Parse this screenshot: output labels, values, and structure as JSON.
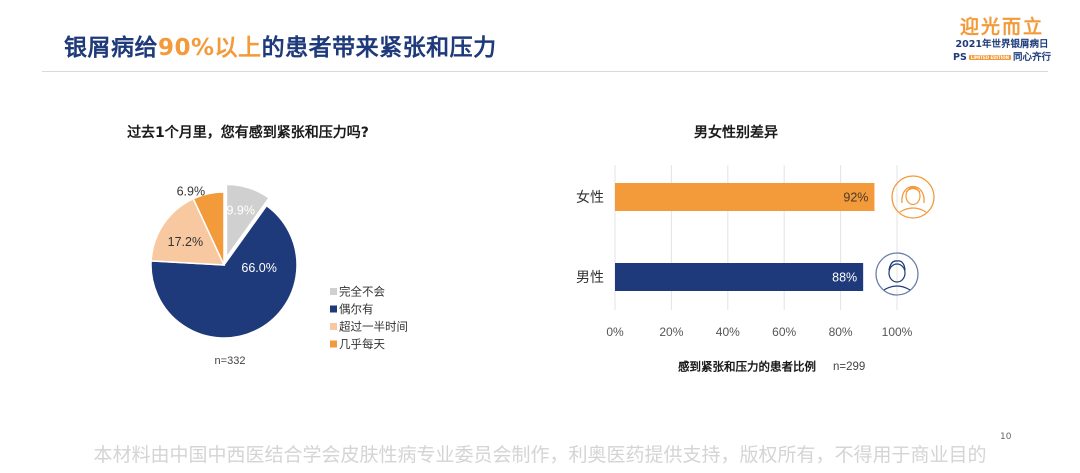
{
  "header": {
    "title_part1": "银屑病给",
    "title_highlight": "90%以上",
    "title_part2": "的患者带来紧张和压力",
    "accent_color": "#f39a3b",
    "primary_color": "#1f3a7a"
  },
  "logo": {
    "name": "迎光而立",
    "line2": "2021年世界银屑病日",
    "ps": "PS",
    "badge": "LIMITED EDITION",
    "line3_tail": "同心齐行"
  },
  "chart_data": [
    {
      "type": "pie",
      "title": "过去1个月里，您有感到紧张和压力吗?",
      "slices": [
        {
          "name": "完全不会",
          "value": 9.9,
          "label": "9.9%",
          "color": "#d0d0d0",
          "exploded": true
        },
        {
          "name": "偶尔有",
          "value": 66.0,
          "label": "66.0%",
          "color": "#1f3a7a",
          "exploded": false
        },
        {
          "name": "超过一半时间",
          "value": 17.2,
          "label": "17.2%",
          "color": "#f8c9a0",
          "exploded": false
        },
        {
          "name": "几乎每天",
          "value": 6.9,
          "label": "6.9%",
          "color": "#f39a3b",
          "exploded": false
        }
      ],
      "note": "n=332",
      "legend_position": "right-bottom"
    },
    {
      "type": "bar",
      "orientation": "horizontal",
      "title": "男女性别差异",
      "categories": [
        "女性",
        "男性"
      ],
      "values": [
        92,
        88
      ],
      "value_labels": [
        "92%",
        "88%"
      ],
      "colors": [
        "#f39a3b",
        "#1f3a7a"
      ],
      "icons": [
        "female-avatar-icon",
        "male-avatar-icon"
      ],
      "xlim": [
        0,
        100
      ],
      "xticks": [
        "0%",
        "20%",
        "40%",
        "60%",
        "80%",
        "100%"
      ],
      "xlabel": "感到紧张和压力的患者比例",
      "note": "n=299",
      "grid": "vertical"
    }
  ],
  "footer": {
    "text": "本材料由中国中西医结合学会皮肤性病专业委员会制作，利奥医药提供支持，版权所有，不得用于商业目的",
    "page": "10"
  }
}
